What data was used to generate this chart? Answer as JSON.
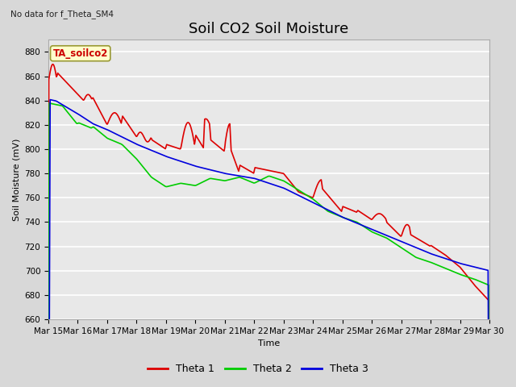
{
  "title": "Soil CO2 Soil Moisture",
  "subtitle": "No data for f_Theta_SM4",
  "xlabel": "Time",
  "ylabel": "Soil Moisture (mV)",
  "ylim": [
    660,
    890
  ],
  "series_labels": [
    "Theta 1",
    "Theta 2",
    "Theta 3"
  ],
  "series_colors": [
    "#dd0000",
    "#00cc00",
    "#0000dd"
  ],
  "x_tick_labels": [
    "Mar 15",
    "Mar 16",
    "Mar 17",
    "Mar 18",
    "Mar 19",
    "Mar 20",
    "Mar 21",
    "Mar 22",
    "Mar 23",
    "Mar 24",
    "Mar 25",
    "Mar 26",
    "Mar 27",
    "Mar 28",
    "Mar 29",
    "Mar 30"
  ],
  "background_color": "#d8d8d8",
  "plot_bg_color": "#e8e8e8",
  "grid_color": "#ffffff",
  "title_fontsize": 13,
  "axis_fontsize": 8,
  "tick_fontsize": 7.5,
  "legend_label": "TA_soilco2",
  "legend_box_color": "#ffffcc",
  "legend_box_edge": "#999933"
}
